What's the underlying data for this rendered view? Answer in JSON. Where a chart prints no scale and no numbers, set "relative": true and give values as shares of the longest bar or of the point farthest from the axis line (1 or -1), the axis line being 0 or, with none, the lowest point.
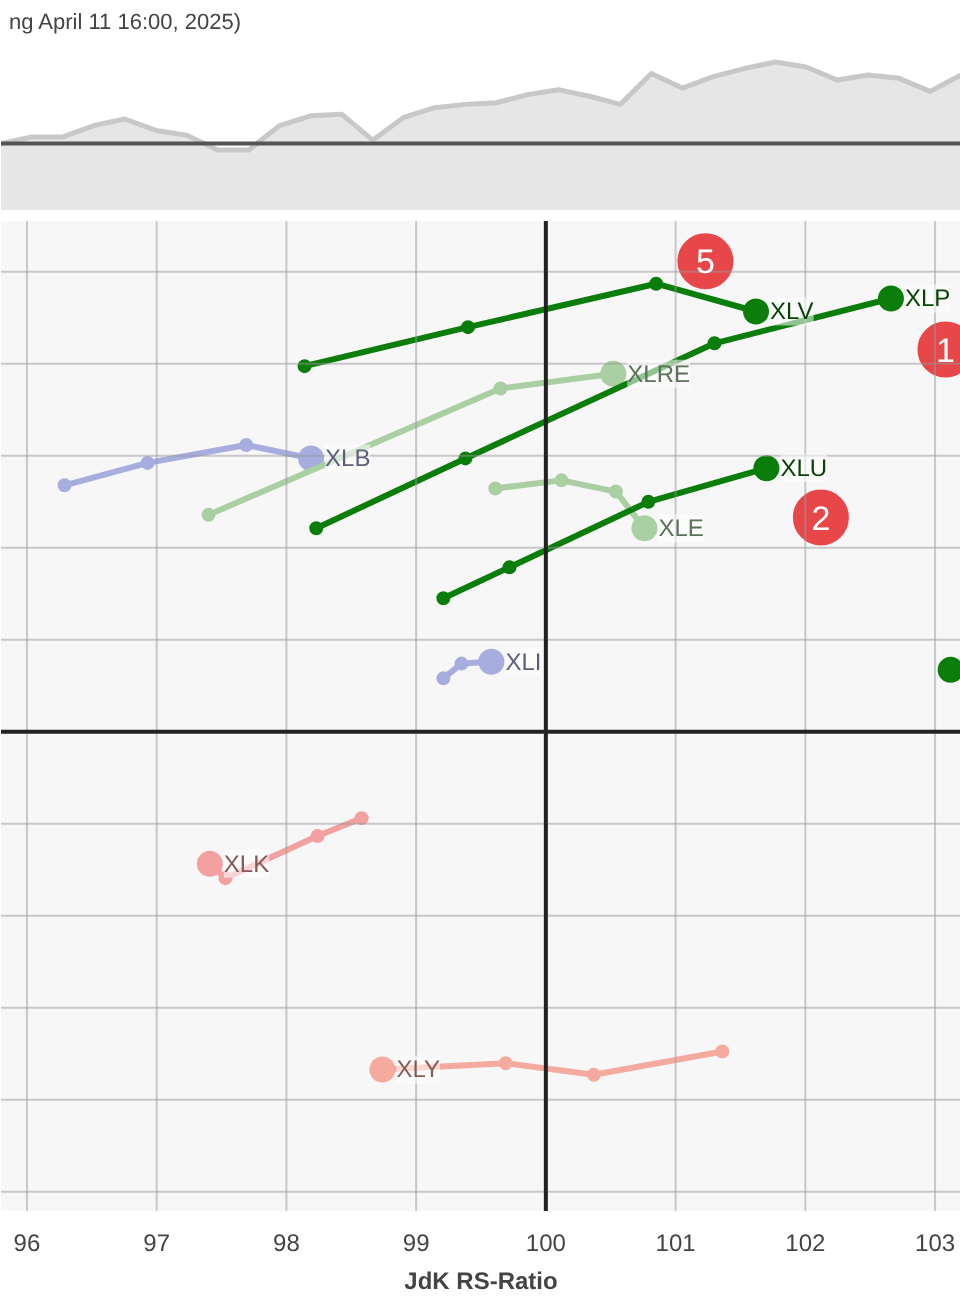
{
  "chart_data": [
    {
      "type": "area",
      "title": "ng April 11 16:00, 2025)",
      "relative": true,
      "color": "#c8c8c8",
      "categories": [
        null,
        null,
        null,
        null,
        null,
        null,
        null,
        null,
        null,
        null,
        null,
        null,
        null,
        null,
        null,
        null,
        null,
        null,
        null,
        null,
        null,
        null,
        null,
        null,
        null,
        null,
        null,
        null,
        null,
        null,
        null,
        null
      ],
      "values": [
        0,
        0.08,
        0.08,
        0.22,
        0.3,
        0.16,
        0.1,
        -0.08,
        -0.08,
        0.22,
        0.34,
        0.36,
        0.04,
        0.32,
        0.44,
        0.48,
        0.5,
        0.6,
        0.66,
        0.58,
        0.48,
        0.86,
        0.68,
        0.82,
        0.92,
        1.0,
        0.94,
        0.78,
        0.84,
        0.8,
        0.64,
        0.84
      ]
    },
    {
      "type": "line",
      "xlabel": "JdK RS-Ratio",
      "relative": true,
      "xlim": [
        95.8,
        103.2
      ],
      "xticks": [
        96,
        97,
        98,
        99,
        100,
        101,
        102,
        103
      ],
      "grid": true,
      "marker": "circle",
      "line_style": "solid",
      "ref_lines": [
        {
          "axis": "x",
          "value": 100,
          "color": "#222222"
        },
        {
          "axis": "y",
          "value": 0,
          "color": "#222222"
        }
      ],
      "series": [
        {
          "name": "XLB",
          "color": "#a7addf",
          "x": [
            96.29,
            96.93,
            97.69,
            98.19
          ],
          "values": [
            0.55,
            0.6,
            0.64,
            0.61
          ]
        },
        {
          "name": "XLI",
          "color": "#a7addf",
          "x": [
            99.21,
            99.35,
            99.58
          ],
          "values": [
            0.119,
            0.152,
            0.156
          ]
        },
        {
          "name": "XLRE",
          "color": "#a9cfa2",
          "x": [
            97.4,
            99.65,
            100.52
          ],
          "values": [
            0.484,
            0.766,
            0.799
          ]
        },
        {
          "name": "XLE",
          "color": "#a9cfa2",
          "x": [
            99.61,
            100.12,
            100.54,
            100.76
          ],
          "values": [
            0.543,
            0.561,
            0.536,
            0.454
          ]
        },
        {
          "name": "XLK",
          "color": "#f2a0a0",
          "x": [
            98.58,
            98.24,
            97.53,
            97.41
          ],
          "values": [
            -0.193,
            -0.233,
            -0.327,
            -0.295
          ]
        },
        {
          "name": "XLY",
          "color": "#f4aa9e",
          "x": [
            101.36,
            100.37,
            99.69,
            98.74
          ],
          "values": [
            -0.714,
            -0.766,
            -0.74,
            -0.754
          ]
        },
        {
          "type": "scatter",
          "color": "#0a7d0a",
          "x": [
            103.12
          ],
          "values": [
            0.138
          ]
        },
        {
          "name": "XLU",
          "color": "#0a7d0a",
          "x": [
            99.21,
            99.72,
            100.79,
            101.7
          ],
          "values": [
            0.298,
            0.367,
            0.513,
            0.588
          ]
        },
        {
          "name": "XLP",
          "color": "#0a7d0a",
          "x": [
            98.23,
            99.38,
            101.3,
            102.66
          ],
          "values": [
            0.454,
            0.61,
            0.867,
            0.967
          ]
        },
        {
          "name": "XLV",
          "color": "#0a7d0a",
          "x": [
            98.14,
            99.4,
            100.85,
            101.62
          ],
          "values": [
            0.816,
            0.903,
            1.0,
            0.938
          ]
        }
      ],
      "annotations": [
        {
          "text": "5",
          "x": 101.23,
          "y": 1.05
        },
        {
          "text": "2",
          "x": 102.12,
          "y": 0.478
        },
        {
          "text": "1",
          "x": 103.08,
          "y": 0.853
        }
      ]
    }
  ]
}
